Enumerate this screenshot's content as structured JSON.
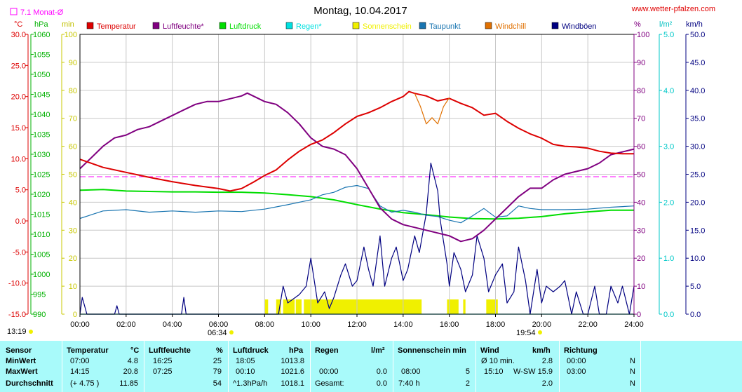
{
  "title": "Montag, 10.04.2017",
  "site": "www.wetter-pfalzen.com",
  "month_avg_label": "7.1 Monat-Ø",
  "colors": {
    "temperature": "#dd0000",
    "humidity": "#800080",
    "pressure": "#00dd00",
    "rain": "#00e0e0",
    "sunshine": "#f0f000",
    "dewpoint": "#1874b0",
    "windchill": "#e07000",
    "gusts": "#000080",
    "avg_line": "#ff00ff"
  },
  "axis_labels": {
    "temp_unit": "°C",
    "pressure_unit": "hPa",
    "sun_unit": "min",
    "hum_unit": "%",
    "rain_unit": "l/m²",
    "wind_unit": "km/h"
  },
  "sun_times": {
    "sunrise_label": "06:34",
    "sunset_label": "19:54",
    "day_start": "13:19"
  },
  "chart_data": {
    "type": "line",
    "title": "Montag, 10.04.2017",
    "x_ticks": [
      "00:00",
      "02:00",
      "04:00",
      "06:00",
      "08:00",
      "10:00",
      "12:00",
      "14:00",
      "16:00",
      "18:00",
      "20:00",
      "22:00",
      "24:00"
    ],
    "x_range_hours": [
      0,
      24
    ],
    "axes": {
      "temperature": {
        "range": [
          -15,
          30
        ],
        "ticks": [
          "30.0",
          "25.0",
          "20.0",
          "15.0",
          "10.0",
          "5.0",
          "0.0",
          "-5.0",
          "-10.0",
          "-15.0"
        ]
      },
      "pressure": {
        "range": [
          990,
          1060
        ],
        "ticks": [
          "1060",
          "1055",
          "1050",
          "1045",
          "1040",
          "1035",
          "1030",
          "1025",
          "1020",
          "1015",
          "1010",
          "1005",
          "1000",
          "995",
          "990"
        ]
      },
      "sunshine": {
        "range": [
          0,
          100
        ],
        "ticks": [
          "100",
          "90",
          "80",
          "70",
          "60",
          "50",
          "40",
          "30",
          "20",
          "10",
          "0"
        ]
      },
      "humidity": {
        "range": [
          0,
          100
        ],
        "ticks": [
          "100",
          "90",
          "80",
          "70",
          "60",
          "50",
          "40",
          "30",
          "20",
          "10",
          "0"
        ]
      },
      "rain": {
        "range": [
          0,
          5
        ],
        "ticks": [
          "5.0",
          "4.0",
          "3.0",
          "2.0",
          "1.0",
          "0.0"
        ]
      },
      "wind": {
        "range": [
          0,
          50
        ],
        "ticks": [
          "50.0",
          "45.0",
          "40.0",
          "35.0",
          "30.0",
          "25.0",
          "20.0",
          "15.0",
          "10.0",
          "5.0",
          "0.0"
        ]
      }
    },
    "legend": [
      "Temperatur",
      "Luftfeuchte*",
      "Luftdruck",
      "Regen*",
      "Sonnenschein",
      "Taupunkt",
      "Windchill",
      "Windböen"
    ],
    "month_avg_temp": 7.1,
    "series": [
      {
        "name": "Temperatur",
        "key": "temperature",
        "axis": "temperature",
        "x": [
          0,
          1,
          2,
          3,
          4,
          5,
          6,
          6.5,
          7,
          7.5,
          8,
          8.5,
          9,
          9.5,
          10,
          10.5,
          11,
          11.5,
          12,
          12.5,
          13,
          13.5,
          14,
          14.25,
          14.5,
          15,
          15.5,
          16,
          16.5,
          17,
          17.5,
          18,
          18.5,
          19,
          19.5,
          20,
          20.5,
          21,
          21.5,
          22,
          22.5,
          23,
          23.5,
          24
        ],
        "y": [
          9.9,
          8.6,
          7.8,
          7.0,
          6.3,
          5.7,
          5.2,
          4.8,
          5.2,
          6.2,
          7.3,
          8.2,
          9.8,
          11.2,
          12.3,
          13.0,
          14.2,
          15.6,
          16.8,
          17.4,
          18.2,
          19.2,
          20.0,
          20.8,
          20.5,
          20.1,
          19.3,
          19.7,
          18.9,
          18.2,
          17.0,
          17.3,
          16.0,
          14.9,
          14.0,
          13.3,
          12.3,
          12.0,
          11.9,
          11.7,
          11.2,
          10.9,
          10.8,
          10.8
        ]
      },
      {
        "name": "Luftfeuchte*",
        "key": "humidity",
        "axis": "humidity",
        "x": [
          0,
          0.5,
          1,
          1.5,
          2,
          2.5,
          3,
          3.5,
          4,
          4.5,
          5,
          5.5,
          6,
          6.5,
          7,
          7.25,
          7.5,
          8,
          8.5,
          9,
          9.5,
          10,
          10.5,
          11,
          11.5,
          12,
          12.5,
          13,
          13.5,
          14,
          14.5,
          15,
          15.5,
          16,
          16.25,
          16.5,
          17,
          17.5,
          18,
          18.5,
          19,
          19.5,
          20,
          20.5,
          21,
          21.5,
          22,
          22.5,
          23,
          23.5,
          24
        ],
        "y": [
          52,
          56,
          60,
          63,
          64,
          66,
          67,
          69,
          71,
          73,
          75,
          76,
          76,
          77,
          78,
          79,
          78,
          76,
          75,
          72,
          68,
          63,
          60,
          59,
          57,
          52,
          45,
          38,
          34,
          32,
          31,
          30,
          29,
          28,
          27,
          26,
          27,
          30,
          34,
          38,
          42,
          45,
          45,
          48,
          50,
          51,
          52,
          54,
          57,
          58,
          59
        ]
      },
      {
        "name": "Luftdruck",
        "key": "pressure",
        "axis": "pressure",
        "x": [
          0,
          1,
          2,
          3,
          4,
          5,
          6,
          7,
          8,
          9,
          10,
          11,
          12,
          13,
          14,
          15,
          16,
          17,
          18,
          19,
          20,
          21,
          22,
          23,
          24
        ],
        "y": [
          1021,
          1021.2,
          1020.8,
          1020.7,
          1020.6,
          1020.6,
          1020.5,
          1020.5,
          1020.3,
          1019.9,
          1019.4,
          1018.6,
          1017.4,
          1016.3,
          1015.4,
          1014.9,
          1014.3,
          1013.9,
          1013.8,
          1014.0,
          1014.4,
          1015.1,
          1015.6,
          1016.0,
          1016.0
        ]
      },
      {
        "name": "Regen*",
        "key": "rain",
        "axis": "rain",
        "x": [
          0,
          24
        ],
        "y": [
          0,
          0
        ]
      },
      {
        "name": "Taupunkt",
        "key": "dewpoint",
        "axis": "temperature",
        "x": [
          0,
          1,
          2,
          3,
          4,
          5,
          6,
          7,
          8,
          9,
          10,
          10.5,
          11,
          11.5,
          12,
          12.5,
          13,
          13.5,
          14,
          14.5,
          15,
          15.5,
          16,
          16.5,
          17,
          17.5,
          18,
          18.5,
          19,
          19.5,
          20,
          21,
          22,
          23,
          24
        ],
        "y": [
          0.4,
          1.6,
          1.8,
          1.4,
          1.6,
          1.4,
          1.6,
          1.5,
          1.9,
          2.6,
          3.4,
          4.2,
          4.6,
          5.4,
          5.7,
          5.2,
          2.4,
          1.4,
          1.7,
          1.4,
          0.9,
          0.7,
          0.1,
          -0.3,
          0.8,
          2.0,
          0.6,
          0.8,
          2.4,
          2.0,
          1.8,
          1.8,
          1.9,
          2.2,
          2.4
        ]
      },
      {
        "name": "Windchill",
        "key": "windchill",
        "axis": "temperature",
        "x": [
          14.5,
          14.75,
          15,
          15.25,
          15.5,
          15.75,
          16
        ],
        "y": [
          20.5,
          18.4,
          15.6,
          16.6,
          15.6,
          18.4,
          19.8
        ]
      },
      {
        "name": "Windböen",
        "key": "gusts",
        "axis": "wind",
        "x": [
          0,
          0.1,
          0.3,
          1.5,
          1.6,
          1.7,
          4.4,
          4.5,
          4.6,
          8.6,
          8.8,
          9.0,
          9.5,
          9.8,
          10.0,
          10.3,
          10.6,
          10.8,
          11.0,
          11.3,
          11.5,
          11.8,
          12.0,
          12.3,
          12.5,
          12.7,
          13.0,
          13.2,
          13.5,
          13.7,
          14.0,
          14.2,
          14.5,
          14.7,
          15.0,
          15.2,
          15.5,
          15.6,
          15.75,
          15.9,
          16.0,
          16.2,
          16.5,
          16.7,
          17.0,
          17.2,
          17.5,
          17.7,
          18.0,
          18.3,
          18.5,
          18.8,
          19.0,
          19.3,
          19.5,
          19.8,
          20.0,
          20.2,
          20.5,
          20.8,
          21.0,
          21.3,
          21.5,
          21.8,
          22.0,
          22.3,
          22.5,
          22.8,
          23.0,
          23.3,
          23.5,
          23.8,
          24.0
        ],
        "y": [
          0,
          3,
          0,
          0,
          1.5,
          0,
          0,
          3,
          0,
          0,
          5,
          2,
          3.5,
          5,
          10,
          2,
          4,
          1,
          3,
          7,
          9,
          5,
          6,
          12,
          8,
          5,
          14,
          5,
          10,
          12,
          6,
          8,
          14,
          11,
          18,
          27,
          22,
          17,
          13,
          9,
          5,
          11,
          8,
          4,
          7,
          14,
          10,
          4,
          7,
          9,
          2,
          4,
          12,
          6,
          0,
          8,
          2,
          5,
          4,
          5,
          6,
          0,
          4,
          0,
          0,
          5,
          0,
          0,
          5,
          2,
          5,
          0,
          5
        ]
      }
    ],
    "sunshine_blocks_hours": [
      [
        8.0,
        8.15
      ],
      [
        8.5,
        8.7
      ],
      [
        8.8,
        9.3
      ],
      [
        9.35,
        9.6
      ],
      [
        9.7,
        14.8
      ],
      [
        15.9,
        16.4
      ],
      [
        16.6,
        16.7
      ],
      [
        17.6,
        18.1
      ]
    ]
  },
  "table": {
    "headers": {
      "sensor": "Sensor",
      "temp": "Temperatur",
      "temp_unit": "°C",
      "hum": "Luftfeuchte",
      "hum_unit": "%",
      "press": "Luftdruck",
      "press_unit": "hPa",
      "rain": "Regen",
      "rain_unit": "l/m²",
      "sun": "Sonnenschein min",
      "wind": "Wind",
      "wind_unit": "km/h",
      "dir": "Richtung"
    },
    "rows": [
      {
        "label": "MinWert",
        "temp_time": "07:00",
        "temp_val": "4.8",
        "hum_time": "16:25",
        "hum_val": "25",
        "press_time": "18:05",
        "press_val": "1013.8",
        "rain_time": "",
        "rain_val": "",
        "sun_time": "",
        "sun_val": "",
        "wind_time": "Ø 10 min.",
        "wind_dir": "",
        "wind_val": "2.8",
        "dir_time": "00:00",
        "dir_val": "N"
      },
      {
        "label": "MaxWert",
        "temp_time": "14:15",
        "temp_val": "20.8",
        "hum_time": "07:25",
        "hum_val": "79",
        "press_time": "00:10",
        "press_val": "1021.6",
        "rain_time": "00:00",
        "rain_val": "0.0",
        "sun_time": "08:00",
        "sun_val": "5",
        "wind_time": "15:10",
        "wind_dir": "W-SW",
        "wind_val": "15.9",
        "dir_time": "03:00",
        "dir_val": "N"
      },
      {
        "label": "Durchschnitt",
        "temp_time": "(+ 4.75 )",
        "temp_val": "11.85",
        "hum_time": "",
        "hum_val": "54",
        "press_time": "^1.3hPa/h",
        "press_val": "1018.1",
        "rain_time": "Gesamt:",
        "rain_val": "0.0",
        "sun_time": "7:40 h",
        "sun_val": "2",
        "wind_time": "",
        "wind_dir": "",
        "wind_val": "2.0",
        "dir_time": "",
        "dir_val": "N"
      }
    ]
  }
}
